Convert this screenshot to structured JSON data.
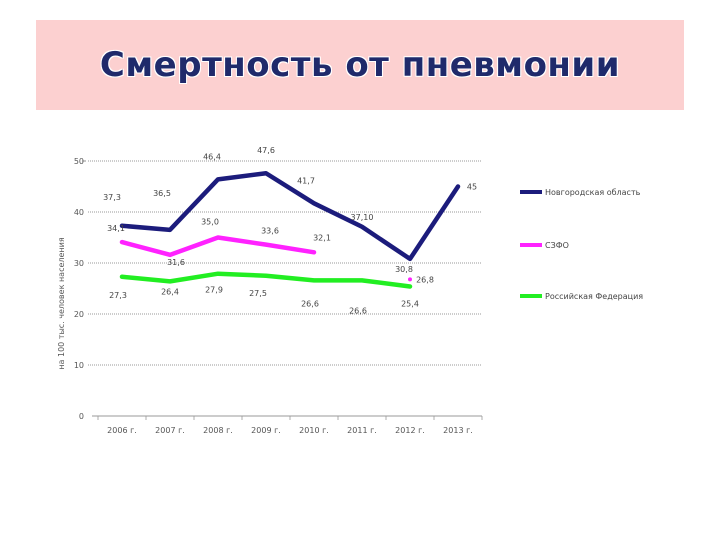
{
  "slide": {
    "title": "Смертность от пневмонии",
    "background": "#ffffff",
    "title_band_color": "#fcd0d0",
    "title_color": "#1f2a6b"
  },
  "chart_data": {
    "type": "line",
    "title": "",
    "ylabel": "на 100 тыс. человек населения",
    "xlabel": "",
    "ylim": [
      0,
      50
    ],
    "yticks": [
      0,
      10,
      20,
      30,
      40,
      50
    ],
    "grid": true,
    "legend": "right",
    "categories": [
      "2006 г.",
      "2007 г.",
      "2008 г.",
      "2009 г.",
      "2010 г.",
      "2011 г.",
      "2012 г.",
      "2013 г."
    ],
    "series": [
      {
        "name": "Новгородская область",
        "color": "#1c1c7c",
        "values": [
          37.3,
          36.5,
          46.4,
          47.6,
          41.7,
          37.1,
          30.8,
          45
        ],
        "labels": [
          "37,3",
          "36,5",
          "46,4",
          "47,6",
          "41,7",
          "37,10",
          "30,8",
          "45"
        ]
      },
      {
        "name": "СЗФО",
        "color": "#ff22ff",
        "values": [
          34.1,
          31.6,
          35.0,
          33.6,
          32.1,
          null,
          null,
          null
        ],
        "labels": [
          "34,1",
          "31,6",
          "35,0",
          "33,6",
          "32,1",
          null,
          null,
          null
        ]
      },
      {
        "name": "Российская Федерация",
        "color": "#22ee22",
        "values": [
          27.3,
          26.4,
          27.9,
          27.5,
          26.6,
          26.6,
          25.4,
          null
        ],
        "labels": [
          "27,3",
          "26,4",
          "27,9",
          "27,5",
          "26,6",
          "26,6",
          "25,4",
          null
        ]
      }
    ],
    "annotations": [
      {
        "text": "26,8",
        "category": "2012 г.",
        "value": 26.8,
        "marker_color": "#ff22ff"
      }
    ]
  }
}
